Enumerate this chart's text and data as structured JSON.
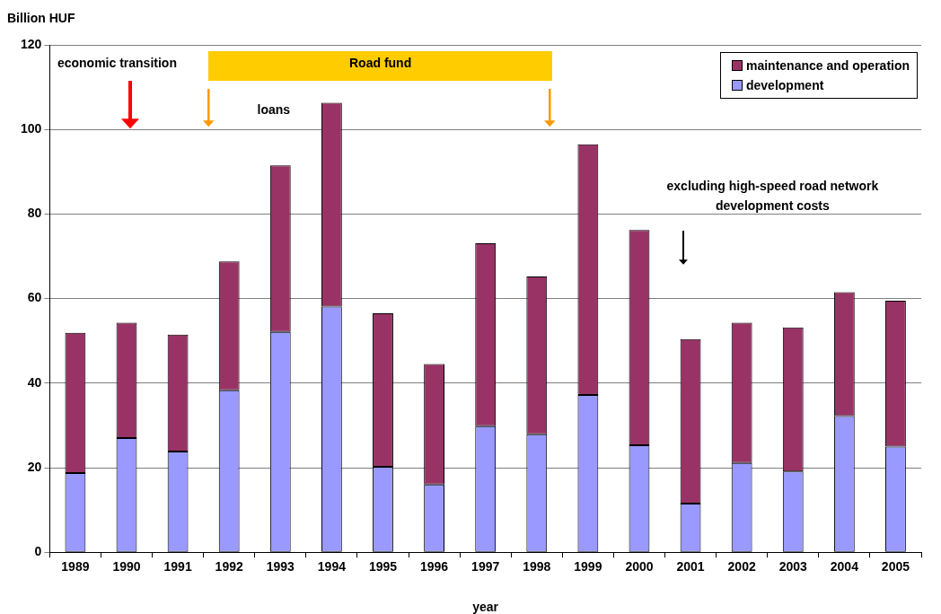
{
  "chart_data": {
    "type": "bar",
    "stacked": true,
    "xlabel": "year",
    "ylabel": "Billion HUF",
    "categories": [
      "1989",
      "1990",
      "1991",
      "1992",
      "1993",
      "1994",
      "1995",
      "1996",
      "1997",
      "1998",
      "1999",
      "2000",
      "2001",
      "2002",
      "2003",
      "2004",
      "2005"
    ],
    "series": [
      {
        "name": "development",
        "color": "#9999ff",
        "values": [
          18.7,
          27.0,
          23.8,
          38.3,
          52.1,
          58.1,
          20.2,
          16.0,
          29.8,
          27.9,
          37.2,
          25.3,
          11.5,
          21.1,
          19.1,
          32.2,
          25.0
        ]
      },
      {
        "name": "maintenance and operation",
        "color": "#993366",
        "values": [
          33.2,
          27.3,
          27.7,
          30.5,
          39.4,
          48.2,
          36.3,
          28.5,
          43.3,
          37.3,
          59.3,
          50.9,
          38.9,
          33.2,
          34.1,
          29.3,
          34.5
        ]
      }
    ],
    "ylim": [
      0,
      120
    ],
    "yticks": [
      0,
      20,
      40,
      60,
      80,
      100,
      120
    ],
    "grid": "y",
    "legend": "top right",
    "annotations": [
      "economic transition",
      "Road fund",
      "loans",
      "excluding high-speed road network development costs"
    ]
  }
}
